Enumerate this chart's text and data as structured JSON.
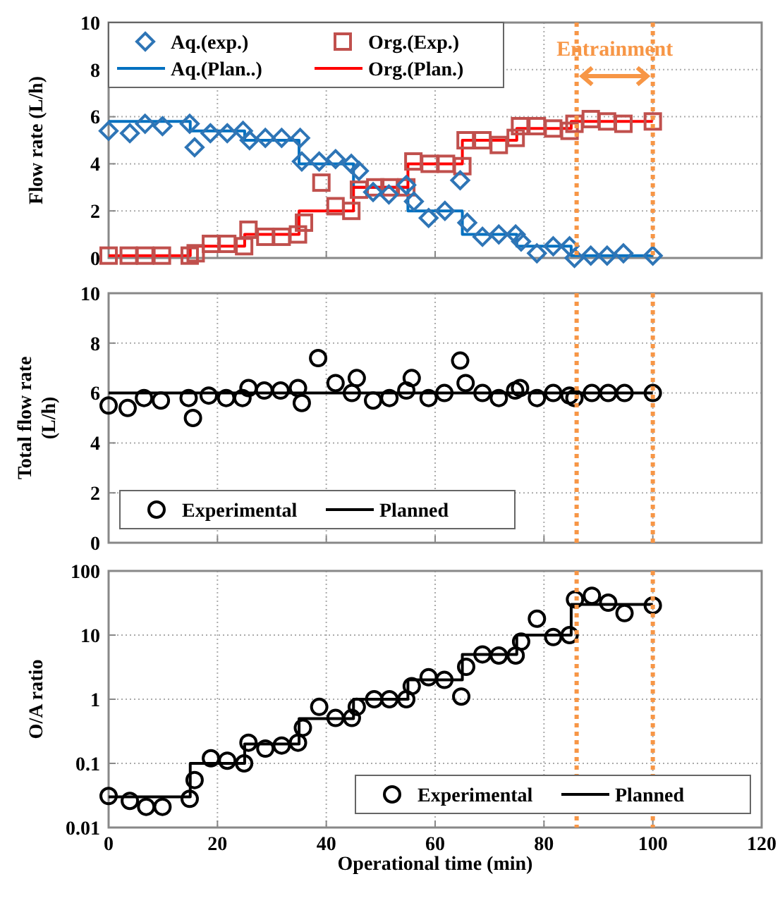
{
  "chart_data": [
    {
      "type": "scatter",
      "ylabel": "Flow rate (L/h)",
      "xlim": [
        0,
        120
      ],
      "xticks": [
        0,
        20,
        40,
        60,
        80,
        100,
        120
      ],
      "ylim": [
        0,
        10
      ],
      "yticks": [
        0,
        2,
        4,
        6,
        8,
        10
      ],
      "grid": true,
      "legend": "top left",
      "tick_labels": "y",
      "series": [
        {
          "name": "Aq.(exp.)",
          "marker": "diamond",
          "color": "#2e75b6",
          "x": [
            0,
            3.9,
            6.7,
            9.9,
            14.9,
            15.8,
            18.7,
            21.8,
            24.7,
            25.9,
            28.8,
            31.8,
            35.2,
            35.5,
            38.7,
            41.7,
            44.6,
            46,
            48.6,
            51.5,
            54.7,
            56.1,
            58.8,
            61.8,
            64.6,
            65.9,
            68.7,
            71.7,
            74.8,
            75.8,
            78.7,
            81.7,
            84.7,
            85.6,
            88.6,
            91.6,
            94.6,
            100
          ],
          "values": [
            5.4,
            5.3,
            5.7,
            5.6,
            5.7,
            4.7,
            5.3,
            5.3,
            5.4,
            5.0,
            5.1,
            5.1,
            5.1,
            4.1,
            4.1,
            4.2,
            4.0,
            3.7,
            2.8,
            2.7,
            3.1,
            2.4,
            1.7,
            2.0,
            3.3,
            1.5,
            0.9,
            1.0,
            1.0,
            0.7,
            0.2,
            0.5,
            0.5,
            0.0,
            0.1,
            0.1,
            0.2,
            0.1
          ]
        },
        {
          "name": "Org.(Exp.)",
          "marker": "square",
          "color": "#c0504d",
          "x": [
            0,
            3.7,
            6.7,
            9.8,
            14.9,
            16,
            18.8,
            21.8,
            24.9,
            25.7,
            28.8,
            31.8,
            34.8,
            35.9,
            39.1,
            41.7,
            44.6,
            46,
            49,
            51.6,
            54.7,
            56,
            59,
            62,
            65,
            65.6,
            68.7,
            71.7,
            74.8,
            75.6,
            78.7,
            81.7,
            84.7,
            85.6,
            88.6,
            91.6,
            94.6,
            100
          ],
          "values": [
            0.1,
            0.1,
            0.1,
            0.1,
            0.1,
            0.2,
            0.6,
            0.6,
            0.5,
            1.2,
            0.9,
            0.9,
            1.0,
            1.5,
            3.2,
            2.2,
            2.0,
            2.9,
            3.0,
            3.0,
            3.0,
            4.1,
            4.0,
            4.0,
            3.9,
            5.0,
            5.0,
            4.8,
            5.1,
            5.6,
            5.6,
            5.5,
            5.4,
            5.7,
            5.9,
            5.8,
            5.7,
            5.8
          ]
        },
        {
          "name": "Aq.(Plan..)",
          "type": "step",
          "color": "#0070c0",
          "x": [
            0,
            15,
            25,
            35,
            45,
            55,
            65,
            75,
            85,
            100
          ],
          "values": [
            5.8,
            5.4,
            5.0,
            4.0,
            3.0,
            2.0,
            1.0,
            0.5,
            0.1,
            0.1
          ]
        },
        {
          "name": "Org.(Plan.)",
          "type": "step",
          "color": "#ff0000",
          "x": [
            0,
            15,
            25,
            35,
            45,
            55,
            65,
            75,
            85,
            100
          ],
          "values": [
            0.1,
            0.5,
            1.0,
            2.0,
            3.0,
            4.0,
            5.0,
            5.5,
            5.8,
            5.8
          ]
        }
      ],
      "ref_lines": [
        {
          "axis": "x",
          "value": 86,
          "color": "#f79646",
          "line_style": "dotted"
        },
        {
          "axis": "x",
          "value": 100,
          "color": "#f79646",
          "line_style": "dotted"
        }
      ],
      "annotations": [
        "Entrainment"
      ]
    },
    {
      "type": "scatter",
      "ylabel": "Total flow rate\n(L/h)",
      "xlim": [
        0,
        120
      ],
      "xticks": [
        0,
        20,
        40,
        60,
        80,
        100,
        120
      ],
      "ylim": [
        0,
        10
      ],
      "yticks": [
        0,
        2,
        4,
        6,
        8,
        10
      ],
      "grid": true,
      "legend": "bottom left",
      "tick_labels": "y",
      "series": [
        {
          "name": "Experimental",
          "marker": "circle",
          "color": "#000000",
          "x": [
            0,
            3.5,
            6.5,
            9.6,
            14.7,
            15.5,
            18.4,
            21.6,
            24.6,
            25.7,
            28.6,
            31.6,
            34.8,
            35.5,
            38.5,
            41.7,
            44.7,
            45.6,
            48.6,
            51.6,
            54.7,
            55.7,
            58.8,
            61.7,
            64.6,
            65.6,
            68.7,
            71.7,
            74.7,
            75.6,
            78.7,
            81.7,
            84.7,
            85.6,
            88.8,
            91.8,
            94.8,
            100
          ],
          "values": [
            5.5,
            5.4,
            5.8,
            5.7,
            5.8,
            5.0,
            5.9,
            5.8,
            5.8,
            6.2,
            6.1,
            6.1,
            6.2,
            5.6,
            7.4,
            6.4,
            6.0,
            6.6,
            5.7,
            5.8,
            6.1,
            6.6,
            5.8,
            6.0,
            7.3,
            6.4,
            6.0,
            5.8,
            6.1,
            6.2,
            5.8,
            6.0,
            5.9,
            5.8,
            6.0,
            6.0,
            6.0,
            6.0
          ]
        },
        {
          "name": "Planned",
          "type": "line",
          "color": "#000000",
          "x": [
            0,
            100
          ],
          "values": [
            6,
            6
          ]
        }
      ],
      "ref_lines": [
        {
          "axis": "x",
          "value": 86,
          "color": "#f79646",
          "line_style": "dotted"
        },
        {
          "axis": "x",
          "value": 100,
          "color": "#f79646",
          "line_style": "dotted"
        }
      ]
    },
    {
      "type": "scatter",
      "ylabel": "O/A ratio",
      "xlabel": "Operational time (min)",
      "log": "y",
      "xlim": [
        0,
        120
      ],
      "xticks": [
        0,
        20,
        40,
        60,
        80,
        100,
        120
      ],
      "ylim": [
        0.01,
        100
      ],
      "yticks": [
        0.01,
        0.1,
        1,
        10,
        100
      ],
      "grid": true,
      "legend": "bottom right",
      "series": [
        {
          "name": "Experimental",
          "marker": "circle",
          "color": "#000000",
          "x": [
            0,
            3.9,
            6.9,
            9.9,
            14.9,
            15.8,
            18.8,
            21.8,
            24.9,
            25.7,
            28.8,
            31.8,
            34.8,
            35.7,
            38.7,
            41.7,
            44.7,
            45.6,
            48.8,
            51.6,
            54.7,
            55.7,
            58.8,
            61.7,
            64.8,
            65.7,
            68.7,
            71.7,
            74.8,
            75.8,
            78.7,
            81.7,
            84.7,
            85.7,
            88.8,
            91.8,
            94.8,
            100
          ],
          "values": [
            0.031,
            0.026,
            0.021,
            0.021,
            0.028,
            0.055,
            0.12,
            0.11,
            0.1,
            0.21,
            0.17,
            0.19,
            0.21,
            0.36,
            0.76,
            0.51,
            0.51,
            0.76,
            1.0,
            1.0,
            1.0,
            1.6,
            2.2,
            2.0,
            1.1,
            3.2,
            5.0,
            4.8,
            4.8,
            7.9,
            18,
            9.3,
            10,
            36,
            41,
            32,
            22,
            29
          ]
        },
        {
          "name": "Planned",
          "type": "step",
          "color": "#000000",
          "x": [
            0,
            15,
            25,
            35,
            45,
            55,
            65,
            75,
            85,
            100
          ],
          "values": [
            0.03,
            0.1,
            0.2,
            0.5,
            1,
            2,
            5,
            10,
            30,
            30
          ]
        }
      ],
      "ref_lines": [
        {
          "axis": "x",
          "value": 86,
          "color": "#f79646",
          "line_style": "dotted"
        },
        {
          "axis": "x",
          "value": 100,
          "color": "#f79646",
          "line_style": "dotted"
        }
      ]
    }
  ]
}
